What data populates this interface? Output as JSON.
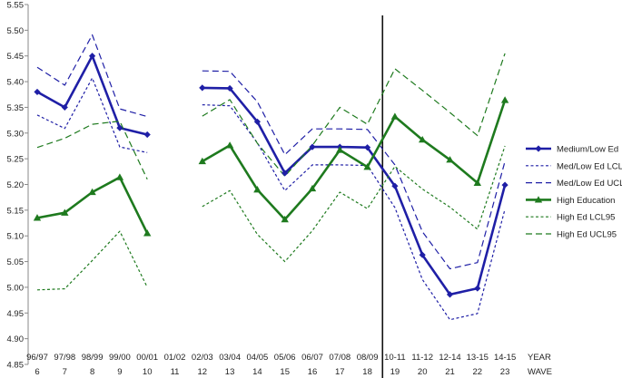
{
  "chart_data": {
    "type": "line",
    "y_ticks": [
      "4.85",
      "4.90",
      "4.95",
      "5.00",
      "5.05",
      "5.10",
      "5.15",
      "5.20",
      "5.25",
      "5.30",
      "5.35",
      "5.40",
      "5.45",
      "5.50",
      "5.55"
    ],
    "ylim": [
      4.85,
      5.55
    ],
    "year_labels": [
      "96/97",
      "97/98",
      "98/99",
      "99/00",
      "00/01",
      "01/02",
      "02/03",
      "03/04",
      "04/05",
      "05/06",
      "06/07",
      "07/08",
      "08/09",
      "10-11",
      "11-12",
      "12-14",
      "13-15",
      "14-15"
    ],
    "wave_labels": [
      "6",
      "7",
      "8",
      "9",
      "10",
      "11",
      "12",
      "13",
      "14",
      "15",
      "16",
      "17",
      "18",
      "19",
      "20",
      "21",
      "22",
      "23"
    ],
    "year_axis_title": "YEAR",
    "wave_axis_title": "WAVE",
    "vertical_line_between_waves": [
      "18",
      "19"
    ],
    "grid": false,
    "legend_position": "right",
    "series": [
      {
        "name": "Medium/Low Ed",
        "color": "#1f1fa6",
        "style": "solid-diamond",
        "values": [
          5.38,
          5.35,
          5.45,
          5.31,
          5.297,
          null,
          5.388,
          5.387,
          5.322,
          5.222,
          5.273,
          5.273,
          5.272,
          5.197,
          5.063,
          4.986,
          4.998,
          5.199
        ]
      },
      {
        "name": "Med/Low Ed LCL95",
        "color": "#1f1fa6",
        "style": "short-dash",
        "values": [
          5.335,
          5.309,
          5.407,
          5.273,
          5.262,
          null,
          5.355,
          5.353,
          5.281,
          5.188,
          5.238,
          5.238,
          5.237,
          5.155,
          5.015,
          4.937,
          4.949,
          5.152
        ]
      },
      {
        "name": "Med/Low Ed UCL95",
        "color": "#1f1fa6",
        "style": "long-dash",
        "values": [
          5.428,
          5.393,
          5.491,
          5.347,
          5.332,
          null,
          5.421,
          5.42,
          5.361,
          5.258,
          5.308,
          5.308,
          5.307,
          5.238,
          5.108,
          5.036,
          5.048,
          5.245
        ]
      },
      {
        "name": "High Education",
        "color": "#1e7a1e",
        "style": "solid-triangle",
        "values": [
          5.135,
          5.145,
          5.185,
          5.214,
          5.105,
          null,
          5.245,
          5.276,
          5.19,
          5.132,
          5.192,
          5.267,
          5.234,
          5.332,
          5.287,
          5.248,
          5.203,
          5.364
        ]
      },
      {
        "name": "High Ed LCL95",
        "color": "#1e7a1e",
        "style": "short-dash",
        "values": [
          4.995,
          4.997,
          5.052,
          5.109,
          5.0,
          null,
          5.157,
          5.188,
          5.103,
          5.05,
          5.11,
          5.185,
          5.153,
          5.235,
          5.191,
          5.156,
          5.113,
          5.275
        ]
      },
      {
        "name": "High Ed UCL95",
        "color": "#1e7a1e",
        "style": "long-dash",
        "values": [
          5.272,
          5.29,
          5.317,
          5.323,
          5.21,
          null,
          5.333,
          5.365,
          5.28,
          5.216,
          5.276,
          5.35,
          5.317,
          5.425,
          5.383,
          5.34,
          5.295,
          5.455
        ]
      }
    ]
  }
}
